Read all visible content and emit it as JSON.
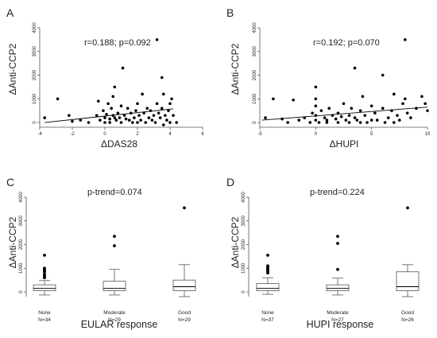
{
  "chart_data": [
    {
      "panel": "A",
      "type": "scatter",
      "ylabel": "ΔAnti-CCP2",
      "xlabel": "ΔDAS28",
      "xlim": [
        -4,
        6
      ],
      "ylim": [
        -200,
        4000
      ],
      "xticks": [
        -4,
        -2,
        0,
        2,
        4,
        6
      ],
      "yticks": [
        0,
        1000,
        2000,
        3000,
        4000
      ],
      "annotation": "r=0.188; p=0.092",
      "trend_line": {
        "x": [
          -3.7,
          4.2
        ],
        "y": [
          0,
          580
        ]
      },
      "points": [
        [
          -3.7,
          200
        ],
        [
          -2.9,
          1000
        ],
        [
          -2.2,
          300
        ],
        [
          -2.0,
          50
        ],
        [
          -1.5,
          100
        ],
        [
          -1.0,
          0
        ],
        [
          -0.5,
          300
        ],
        [
          -0.4,
          900
        ],
        [
          -0.3,
          100
        ],
        [
          -0.1,
          500
        ],
        [
          0.0,
          200
        ],
        [
          0.0,
          0
        ],
        [
          0.1,
          350
        ],
        [
          0.2,
          800
        ],
        [
          0.3,
          150
        ],
        [
          0.3,
          0
        ],
        [
          0.4,
          600
        ],
        [
          0.5,
          1100
        ],
        [
          0.5,
          300
        ],
        [
          0.6,
          1500
        ],
        [
          0.6,
          200
        ],
        [
          0.7,
          100
        ],
        [
          0.8,
          400
        ],
        [
          0.9,
          200
        ],
        [
          1.0,
          700
        ],
        [
          1.0,
          0
        ],
        [
          1.1,
          2300
        ],
        [
          1.2,
          300
        ],
        [
          1.3,
          150
        ],
        [
          1.4,
          600
        ],
        [
          1.5,
          100
        ],
        [
          1.6,
          400
        ],
        [
          1.7,
          0
        ],
        [
          1.8,
          200
        ],
        [
          1.9,
          500
        ],
        [
          2.0,
          800
        ],
        [
          2.0,
          0
        ],
        [
          2.1,
          300
        ],
        [
          2.2,
          100
        ],
        [
          2.3,
          1200
        ],
        [
          2.4,
          400
        ],
        [
          2.5,
          0
        ],
        [
          2.6,
          600
        ],
        [
          2.7,
          200
        ],
        [
          2.8,
          500
        ],
        [
          2.9,
          100
        ],
        [
          3.0,
          300
        ],
        [
          3.1,
          0
        ],
        [
          3.2,
          3500
        ],
        [
          3.2,
          800
        ],
        [
          3.3,
          400
        ],
        [
          3.4,
          200
        ],
        [
          3.5,
          1900
        ],
        [
          3.5,
          600
        ],
        [
          3.6,
          1200
        ],
        [
          3.6,
          -100
        ],
        [
          3.7,
          300
        ],
        [
          3.8,
          100
        ],
        [
          3.9,
          500
        ],
        [
          4.0,
          800
        ],
        [
          4.0,
          0
        ],
        [
          4.1,
          1000
        ],
        [
          4.2,
          300
        ],
        [
          4.4,
          0
        ]
      ]
    },
    {
      "panel": "B",
      "type": "scatter",
      "ylabel": "ΔAnti-CCP2",
      "xlabel": "ΔHUPI",
      "xlim": [
        -5,
        10
      ],
      "ylim": [
        -200,
        4000
      ],
      "xticks": [
        -5,
        0,
        5,
        10
      ],
      "yticks": [
        0,
        1000,
        2000,
        3000,
        4000
      ],
      "annotation": "r=0.192; p=0.070",
      "trend_line": {
        "x": [
          -4.8,
          10
        ],
        "y": [
          100,
          650
        ]
      },
      "points": [
        [
          -4.5,
          200
        ],
        [
          -3.8,
          1000
        ],
        [
          -3.0,
          150
        ],
        [
          -2.5,
          0
        ],
        [
          -2.0,
          950
        ],
        [
          -1.5,
          100
        ],
        [
          -1.0,
          200
        ],
        [
          -0.5,
          0
        ],
        [
          -0.3,
          400
        ],
        [
          0.0,
          1500
        ],
        [
          0.0,
          1000
        ],
        [
          0.0,
          700
        ],
        [
          0.0,
          300
        ],
        [
          0.0,
          100
        ],
        [
          0.3,
          0
        ],
        [
          0.5,
          500
        ],
        [
          0.8,
          200
        ],
        [
          1.0,
          100
        ],
        [
          1.0,
          0
        ],
        [
          1.2,
          600
        ],
        [
          1.5,
          300
        ],
        [
          1.8,
          150
        ],
        [
          2.0,
          0
        ],
        [
          2.0,
          400
        ],
        [
          2.3,
          250
        ],
        [
          2.5,
          800
        ],
        [
          2.7,
          100
        ],
        [
          3.0,
          300
        ],
        [
          3.0,
          0
        ],
        [
          3.2,
          600
        ],
        [
          3.5,
          2300
        ],
        [
          3.5,
          200
        ],
        [
          3.7,
          100
        ],
        [
          4.0,
          500
        ],
        [
          4.0,
          0
        ],
        [
          4.2,
          1100
        ],
        [
          4.4,
          300
        ],
        [
          4.6,
          0
        ],
        [
          5.0,
          100
        ],
        [
          5.0,
          700
        ],
        [
          5.3,
          400
        ],
        [
          5.5,
          100
        ],
        [
          6.0,
          2000
        ],
        [
          6.0,
          600
        ],
        [
          6.2,
          0
        ],
        [
          6.5,
          200
        ],
        [
          6.8,
          500
        ],
        [
          7.0,
          1200
        ],
        [
          7.0,
          0
        ],
        [
          7.3,
          300
        ],
        [
          7.5,
          100
        ],
        [
          7.8,
          800
        ],
        [
          8.0,
          3500
        ],
        [
          8.0,
          1000
        ],
        [
          8.2,
          400
        ],
        [
          8.5,
          200
        ],
        [
          9.0,
          600
        ],
        [
          9.5,
          1100
        ],
        [
          9.8,
          800
        ],
        [
          10.0,
          500
        ]
      ]
    },
    {
      "panel": "C",
      "type": "box",
      "ylabel": "ΔAnti-CCP2",
      "xlabel": "EULAR response",
      "ylim": [
        -200,
        4000
      ],
      "yticks": [
        0,
        1000,
        2000,
        3000,
        4000
      ],
      "annotation": "p-trend=0.074",
      "groups": [
        {
          "name": "None",
          "n": "N=34",
          "whisker_low": -130,
          "q1": 50,
          "median": 150,
          "q3": 300,
          "whisker_high": 480,
          "outliers": [
            600,
            650,
            700,
            750,
            850,
            900,
            950,
            1000,
            1550
          ]
        },
        {
          "name": "Moderate",
          "n": "N=29",
          "whisker_low": -130,
          "q1": 50,
          "median": 150,
          "q3": 450,
          "whisker_high": 950,
          "outliers": [
            1950,
            2350
          ]
        },
        {
          "name": "Good",
          "n": "N=29",
          "whisker_low": -200,
          "q1": 50,
          "median": 220,
          "q3": 500,
          "whisker_high": 1150,
          "outliers": [
            3550
          ]
        }
      ]
    },
    {
      "panel": "D",
      "type": "box",
      "ylabel": "ΔAnti-CCP2",
      "xlabel": "HUPI response",
      "ylim": [
        -200,
        4000
      ],
      "yticks": [
        0,
        1000,
        2000,
        3000,
        4000
      ],
      "annotation": "p-trend=0.224",
      "groups": [
        {
          "name": "None",
          "n": "N=37",
          "whisker_low": -100,
          "q1": 50,
          "median": 150,
          "q3": 350,
          "whisker_high": 600,
          "outliers": [
            800,
            850,
            900,
            950,
            1000,
            1050,
            1100,
            1550
          ]
        },
        {
          "name": "Moderate",
          "n": "N=27",
          "whisker_low": -130,
          "q1": 50,
          "median": 150,
          "q3": 300,
          "whisker_high": 580,
          "outliers": [
            950,
            2050,
            2350
          ]
        },
        {
          "name": "Good",
          "n": "N=26",
          "whisker_low": -200,
          "q1": 50,
          "median": 220,
          "q3": 850,
          "whisker_high": 1150,
          "outliers": [
            3550
          ]
        }
      ]
    }
  ]
}
